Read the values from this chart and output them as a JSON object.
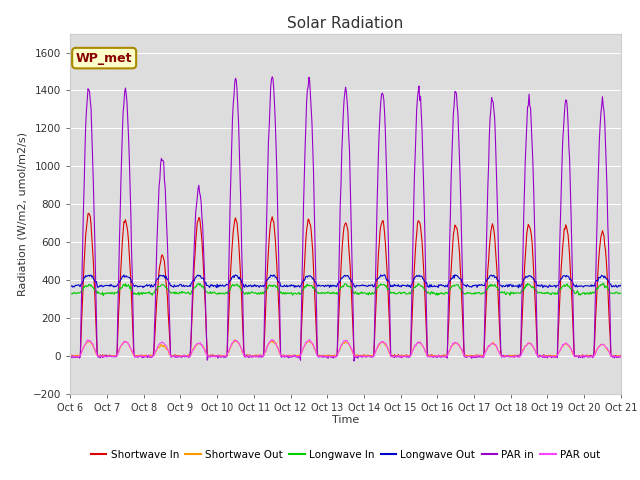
{
  "title": "Solar Radiation",
  "ylabel": "Radiation (W/m2, umol/m2/s)",
  "xlabel": "Time",
  "ylim": [
    -200,
    1700
  ],
  "yticks": [
    -200,
    0,
    200,
    400,
    600,
    800,
    1000,
    1200,
    1400,
    1600
  ],
  "fig_bg_color": "#ffffff",
  "plot_bg_color": "#dddddd",
  "legend_labels": [
    "Shortwave In",
    "Shortwave Out",
    "Longwave In",
    "Longwave Out",
    "PAR in",
    "PAR out"
  ],
  "legend_colors": [
    "#dd0000",
    "#ff9900",
    "#00cc00",
    "#0000cc",
    "#9900cc",
    "#ff44ff"
  ],
  "annotation_text": "WP_met",
  "annotation_facecolor": "#ffffcc",
  "annotation_edgecolor": "#aa8800",
  "annotation_color": "#880000"
}
